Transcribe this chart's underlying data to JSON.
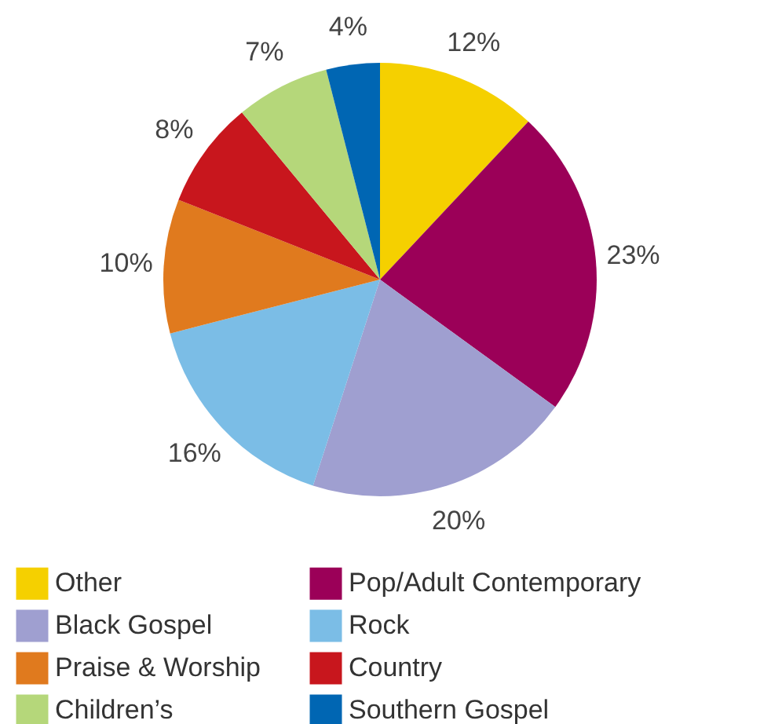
{
  "chart_data": {
    "type": "pie",
    "categories": [
      "Other",
      "Pop/Adult Contemporary",
      "Black Gospel",
      "Rock",
      "Praise & Worship",
      "Country",
      "Children’s",
      "Southern Gospel"
    ],
    "values": [
      12,
      23,
      20,
      16,
      10,
      8,
      7,
      4
    ],
    "colors": [
      "#f5d000",
      "#9b0058",
      "#9f9fd0",
      "#7bbde6",
      "#e07a1e",
      "#c8161d",
      "#b5d77a",
      "#0066b3"
    ],
    "value_labels": [
      "12%",
      "23%",
      "20%",
      "16%",
      "10%",
      "8%",
      "7%",
      "4%"
    ],
    "legend": "bottom"
  }
}
